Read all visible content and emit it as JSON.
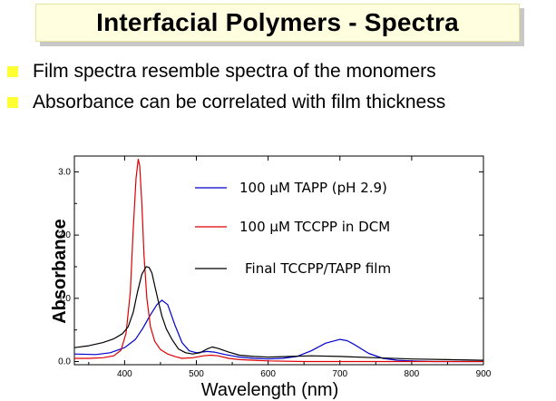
{
  "slide": {
    "title": "Interfacial Polymers - Spectra",
    "bullets": [
      "Film spectra resemble spectra of the monomers",
      "Absorbance can be correlated with film thickness"
    ],
    "bullet_color": "#ffff33",
    "title_background": "#ffffe0"
  },
  "chart_data": {
    "type": "line",
    "title": "",
    "xlabel": "Wavelength (nm)",
    "ylabel": "Absorbance",
    "xlim": [
      330,
      900
    ],
    "ylim": [
      -0.05,
      3.25
    ],
    "xticks": [
      400,
      500,
      600,
      700,
      800,
      900
    ],
    "yticks": [
      0.0,
      1.0,
      2.0,
      3.0
    ],
    "xtick_labels": [
      "400",
      "500",
      "600",
      "700",
      "800",
      "900"
    ],
    "ytick_labels": [
      "0.0",
      "1.0",
      "2.0",
      "3.0"
    ],
    "grid": false,
    "legend_position": "top-right",
    "series": [
      {
        "name": "100 µM TAPP (pH 2.9)",
        "color": "#0000cc",
        "x": [
          330,
          360,
          380,
          400,
          415,
          425,
          435,
          445,
          452,
          460,
          470,
          480,
          490,
          500,
          515,
          525,
          540,
          560,
          580,
          600,
          620,
          640,
          660,
          680,
          700,
          710,
          720,
          740,
          760,
          780,
          800,
          830,
          860,
          900
        ],
        "y": [
          0.12,
          0.11,
          0.14,
          0.22,
          0.35,
          0.52,
          0.72,
          0.9,
          0.97,
          0.9,
          0.58,
          0.3,
          0.17,
          0.14,
          0.16,
          0.15,
          0.11,
          0.07,
          0.05,
          0.04,
          0.05,
          0.08,
          0.17,
          0.29,
          0.35,
          0.33,
          0.27,
          0.13,
          0.05,
          0.02,
          0.01,
          0.0,
          0.0,
          0.0
        ]
      },
      {
        "name": "100 µM TCCPP in DCM",
        "color": "#dd0000",
        "x": [
          330,
          350,
          370,
          385,
          395,
          402,
          408,
          412,
          416,
          419,
          421,
          424,
          427,
          431,
          436,
          442,
          450,
          460,
          470,
          480,
          495,
          510,
          520,
          530,
          545,
          560,
          580,
          600,
          650,
          700,
          900
        ],
        "y": [
          0.05,
          0.05,
          0.06,
          0.09,
          0.18,
          0.45,
          1.1,
          2.1,
          2.9,
          3.2,
          3.1,
          2.5,
          1.7,
          1.0,
          0.55,
          0.32,
          0.19,
          0.12,
          0.08,
          0.05,
          0.06,
          0.09,
          0.1,
          0.09,
          0.05,
          0.03,
          0.02,
          0.01,
          0.0,
          0.0,
          0.0
        ]
      },
      {
        "name": "Final TCCPP/TAPP film",
        "color": "#000000",
        "x": [
          330,
          350,
          370,
          385,
          397,
          405,
          412,
          418,
          424,
          430,
          434,
          438,
          442,
          447,
          452,
          458,
          466,
          475,
          485,
          495,
          505,
          515,
          522,
          530,
          545,
          560,
          580,
          600,
          630,
          660,
          700,
          750,
          800,
          850,
          900
        ],
        "y": [
          0.22,
          0.25,
          0.3,
          0.36,
          0.44,
          0.55,
          0.78,
          1.1,
          1.38,
          1.5,
          1.49,
          1.4,
          1.2,
          0.95,
          0.72,
          0.52,
          0.35,
          0.2,
          0.14,
          0.12,
          0.14,
          0.2,
          0.23,
          0.21,
          0.15,
          0.1,
          0.08,
          0.07,
          0.08,
          0.09,
          0.08,
          0.06,
          0.04,
          0.03,
          0.02
        ]
      }
    ]
  }
}
